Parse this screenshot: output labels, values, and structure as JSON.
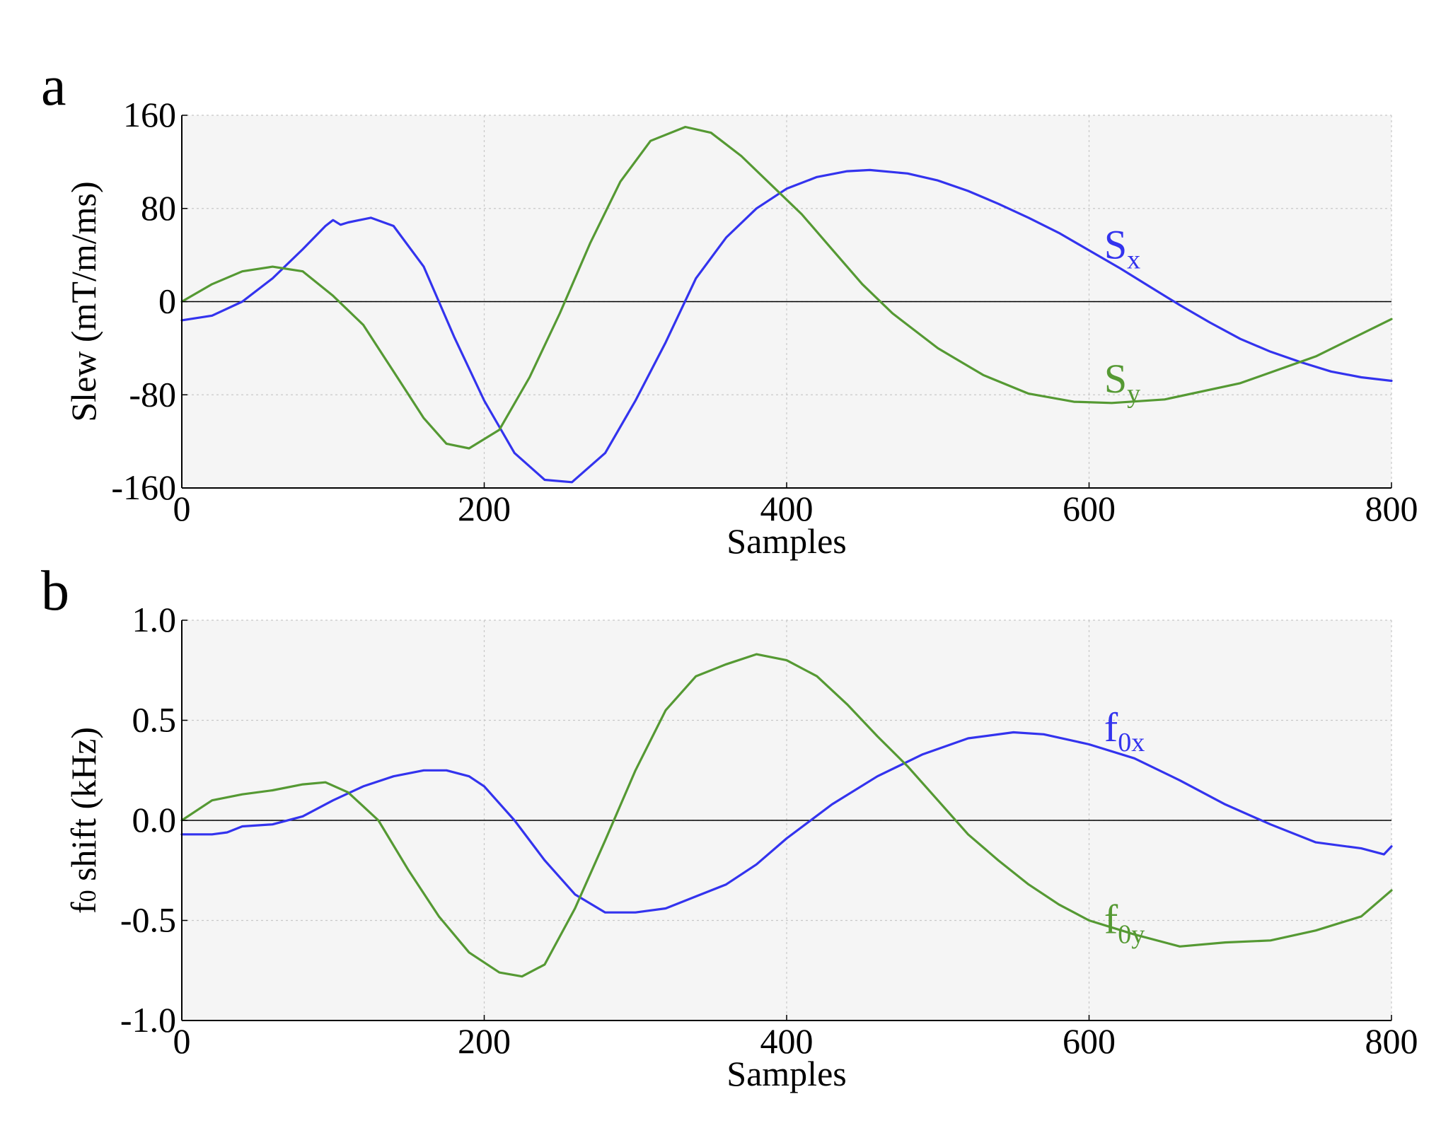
{
  "colors": {
    "blue": "#3333ee",
    "green": "#559933",
    "panel_bg": "#f5f5f5"
  },
  "chart_data": [
    {
      "type": "line",
      "panel_letter": "a",
      "xlabel": "Samples",
      "ylabel": "Slew (mT/m/ms)",
      "xlim": [
        0,
        800
      ],
      "ylim": [
        -160,
        160
      ],
      "xticks": [
        0,
        200,
        400,
        600,
        800
      ],
      "yticks": [
        -160,
        -80,
        0,
        80,
        160
      ],
      "xtick_labels": [
        "0",
        "200",
        "400",
        "600",
        "800"
      ],
      "ytick_labels": [
        "-160",
        "-80",
        "0",
        "80",
        "160"
      ],
      "grid": true,
      "zero_line": true,
      "series": [
        {
          "name": "Sx",
          "label_main": "S",
          "label_sub": "x",
          "color": "#3333ee",
          "label_at": [
            610,
            48
          ],
          "x": [
            0,
            20,
            40,
            60,
            80,
            95,
            100,
            105,
            110,
            125,
            140,
            160,
            180,
            200,
            220,
            240,
            258,
            280,
            300,
            320,
            340,
            360,
            380,
            400,
            420,
            440,
            455,
            480,
            500,
            520,
            540,
            560,
            580,
            600,
            620,
            640,
            660,
            680,
            700,
            720,
            740,
            760,
            780,
            800
          ],
          "y": [
            -16,
            -12,
            0,
            20,
            45,
            65,
            70,
            66,
            68,
            72,
            65,
            30,
            -30,
            -85,
            -130,
            -153,
            -155,
            -130,
            -85,
            -35,
            20,
            55,
            80,
            97,
            107,
            112,
            113,
            110,
            104,
            95,
            84,
            72,
            59,
            44,
            29,
            13,
            -3,
            -18,
            -32,
            -43,
            -52,
            -60,
            -65,
            -68
          ]
        },
        {
          "name": "Sy",
          "label_main": "S",
          "label_sub": "y",
          "color": "#559933",
          "label_at": [
            610,
            -67
          ],
          "x": [
            0,
            20,
            40,
            60,
            80,
            100,
            120,
            140,
            160,
            175,
            190,
            210,
            230,
            250,
            270,
            290,
            310,
            333,
            350,
            370,
            390,
            410,
            430,
            450,
            470,
            500,
            530,
            560,
            590,
            615,
            650,
            700,
            750,
            800
          ],
          "y": [
            0,
            15,
            26,
            30,
            26,
            5,
            -20,
            -60,
            -100,
            -122,
            -126,
            -110,
            -65,
            -10,
            50,
            103,
            138,
            150,
            145,
            125,
            100,
            75,
            45,
            15,
            -10,
            -40,
            -63,
            -79,
            -86,
            -87,
            -84,
            -70,
            -47,
            -15
          ]
        }
      ]
    },
    {
      "type": "line",
      "panel_letter": "b",
      "xlabel": "Samples",
      "ylabel_main": "f",
      "ylabel_sub": "0",
      "ylabel_rest": " shift (kHz)",
      "xlim": [
        0,
        800
      ],
      "ylim": [
        -1.0,
        1.0
      ],
      "xticks": [
        0,
        200,
        400,
        600,
        800
      ],
      "yticks": [
        -1.0,
        -0.5,
        0.0,
        0.5,
        1.0
      ],
      "xtick_labels": [
        "0",
        "200",
        "400",
        "600",
        "800"
      ],
      "ytick_labels": [
        "-1.0",
        "-0.5",
        "0.0",
        "0.5",
        "1.0"
      ],
      "grid": true,
      "zero_line": true,
      "series": [
        {
          "name": "f0x",
          "label_main": "f",
          "label_sub": "0x",
          "color": "#3333ee",
          "label_at": [
            610,
            0.46
          ],
          "x": [
            0,
            20,
            30,
            40,
            60,
            80,
            100,
            120,
            140,
            160,
            175,
            190,
            200,
            220,
            240,
            260,
            280,
            300,
            320,
            340,
            360,
            380,
            400,
            430,
            460,
            490,
            520,
            550,
            570,
            600,
            630,
            660,
            690,
            720,
            750,
            780,
            795,
            800
          ],
          "y": [
            -0.07,
            -0.07,
            -0.06,
            -0.03,
            -0.02,
            0.02,
            0.1,
            0.17,
            0.22,
            0.25,
            0.25,
            0.22,
            0.17,
            0.0,
            -0.2,
            -0.37,
            -0.46,
            -0.46,
            -0.44,
            -0.38,
            -0.32,
            -0.22,
            -0.09,
            0.08,
            0.22,
            0.33,
            0.41,
            0.44,
            0.43,
            0.38,
            0.31,
            0.2,
            0.08,
            -0.02,
            -0.11,
            -0.14,
            -0.17,
            -0.13
          ]
        },
        {
          "name": "f0y",
          "label_main": "f",
          "label_sub": "0y",
          "color": "#559933",
          "label_at": [
            610,
            -0.5
          ],
          "x": [
            0,
            10,
            20,
            40,
            60,
            80,
            95,
            110,
            130,
            150,
            170,
            190,
            210,
            225,
            240,
            260,
            280,
            300,
            320,
            340,
            360,
            380,
            400,
            420,
            440,
            460,
            480,
            500,
            520,
            540,
            560,
            580,
            600,
            630,
            660,
            690,
            720,
            750,
            780,
            800
          ],
          "y": [
            0.0,
            0.05,
            0.1,
            0.13,
            0.15,
            0.18,
            0.19,
            0.14,
            0.0,
            -0.25,
            -0.48,
            -0.66,
            -0.76,
            -0.78,
            -0.72,
            -0.44,
            -0.1,
            0.25,
            0.55,
            0.72,
            0.78,
            0.83,
            0.8,
            0.72,
            0.58,
            0.42,
            0.27,
            0.1,
            -0.07,
            -0.2,
            -0.32,
            -0.42,
            -0.5,
            -0.57,
            -0.63,
            -0.61,
            -0.6,
            -0.55,
            -0.48,
            -0.35
          ]
        }
      ]
    }
  ]
}
